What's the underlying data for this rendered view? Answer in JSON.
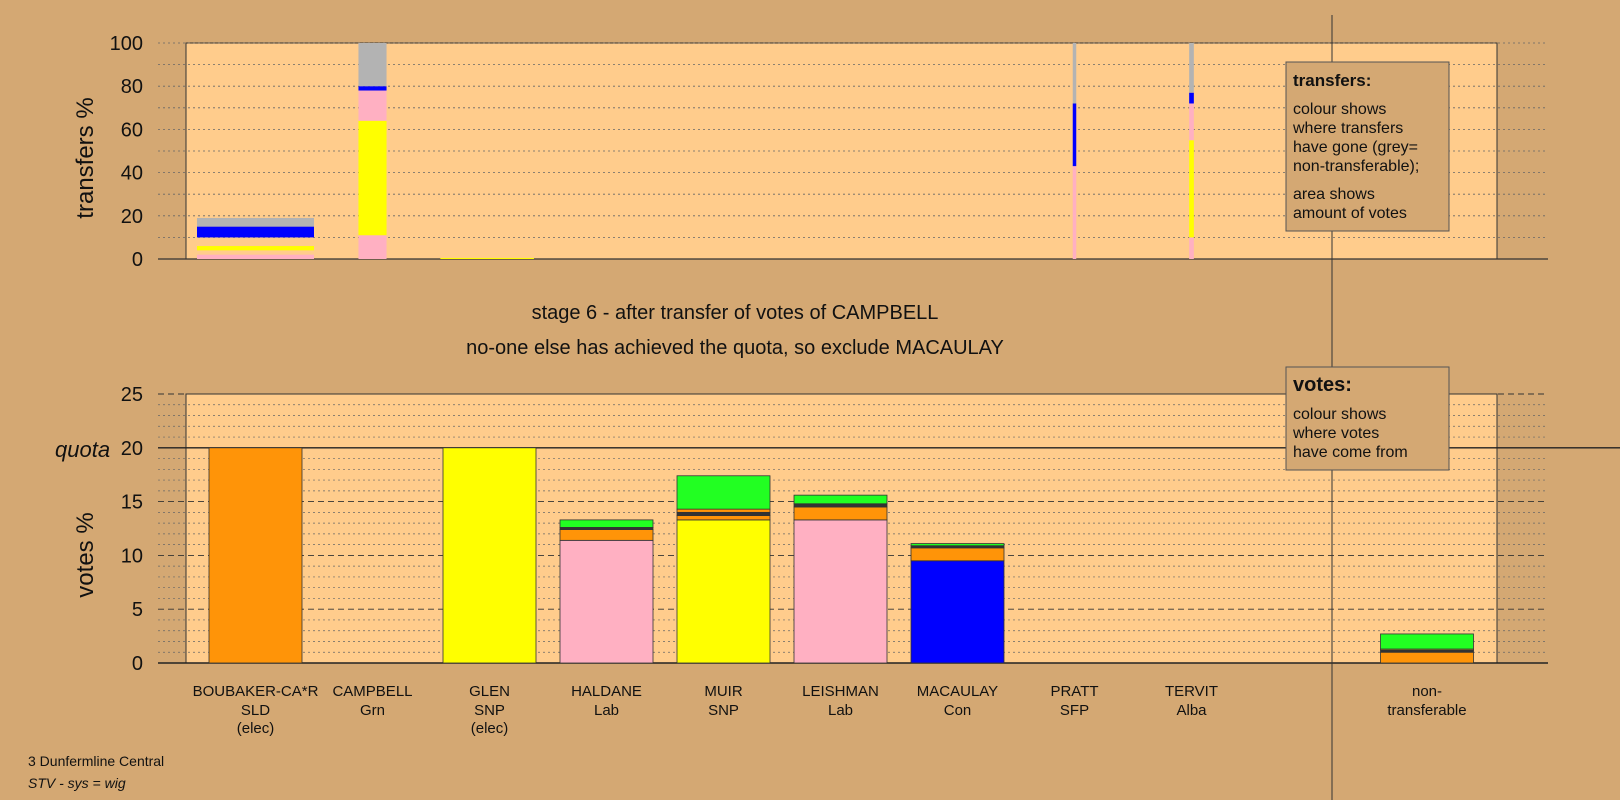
{
  "colors": {
    "page_bg": "#d4a873",
    "plot_bg": "#ffcc8c",
    "SLD": "#ff9408",
    "SNP": "#ffff00",
    "Lab": "#ffb0c2",
    "Con": "#0000ff",
    "Grn": "#22ff22",
    "Alba": "#2255cc",
    "nontransferable": "#b3b3b3",
    "dark": "#333333"
  },
  "texts": {
    "stage_line1": "stage 6 - after transfer of votes of CAMPBELL",
    "stage_line2": "no-one else has achieved the quota, so exclude MACAULAY",
    "transfers_ylabel": "transfers %",
    "votes_ylabel": "votes %",
    "quota_label": "quota",
    "footer_line1": "3 Dunfermline Central",
    "footer_line2": "STV - sys = wig",
    "transfers_box_title": "transfers:",
    "transfers_box_p1": [
      "colour shows",
      "where transfers",
      "have gone (grey=",
      "non-transferable);"
    ],
    "transfers_box_p2": [
      "area shows",
      "amount of votes"
    ],
    "votes_box_title": "votes:",
    "votes_box_p1": [
      "colour shows",
      "where votes",
      "have come from"
    ]
  },
  "chart_data": [
    {
      "type": "bar",
      "name": "transfers",
      "ylabel": "transfers %",
      "ylim": [
        0,
        100
      ],
      "yticks": [
        0,
        20,
        40,
        60,
        80,
        100
      ],
      "bars": [
        {
          "center": 0,
          "width_cat": 1.0,
          "segments": [
            {
              "party": "Lab",
              "from": 0,
              "to": 2
            },
            {
              "party": "SNP",
              "from": 4,
              "to": 6
            },
            {
              "party": "Con",
              "from": 10,
              "to": 15
            },
            {
              "party": "nontransferable",
              "from": 15,
              "to": 19
            }
          ]
        },
        {
          "center": 1,
          "width_cat": 0.24,
          "segments": [
            {
              "party": "Lab",
              "from": 0,
              "to": 11
            },
            {
              "party": "SNP",
              "from": 11,
              "to": 64
            },
            {
              "party": "Lab",
              "from": 64,
              "to": 78
            },
            {
              "party": "Con",
              "from": 78,
              "to": 80
            },
            {
              "party": "nontransferable",
              "from": 80,
              "to": 100
            }
          ]
        },
        {
          "center": 1.98,
          "width_cat": 0.8,
          "segments": [
            {
              "party": "SNP",
              "from": 0,
              "to": 0.5
            }
          ]
        },
        {
          "center": 7,
          "width_cat": 0.03,
          "segments": [
            {
              "party": "Lab",
              "from": 0,
              "to": 43
            },
            {
              "party": "Con",
              "from": 43,
              "to": 72
            },
            {
              "party": "nontransferable",
              "from": 72,
              "to": 100
            }
          ]
        },
        {
          "center": 8,
          "width_cat": 0.04,
          "segments": [
            {
              "party": "Lab",
              "from": 0,
              "to": 10
            },
            {
              "party": "SNP",
              "from": 10,
              "to": 55
            },
            {
              "party": "Lab",
              "from": 55,
              "to": 72
            },
            {
              "party": "Con",
              "from": 72,
              "to": 77
            },
            {
              "party": "nontransferable",
              "from": 77,
              "to": 100
            }
          ]
        }
      ]
    },
    {
      "type": "bar",
      "name": "votes",
      "ylabel": "votes %",
      "ylim": [
        0,
        25
      ],
      "yticks": [
        0,
        5,
        10,
        15,
        20,
        25
      ],
      "quota": 20,
      "categories": [
        {
          "name": "BOUBAKER-CA*R",
          "party": "SLD",
          "note": "(elec)"
        },
        {
          "name": "CAMPBELL",
          "party": "Grn",
          "note": ""
        },
        {
          "name": "GLEN",
          "party": "SNP",
          "note": "(elec)"
        },
        {
          "name": "HALDANE",
          "party": "Lab",
          "note": ""
        },
        {
          "name": "MUIR",
          "party": "SNP",
          "note": ""
        },
        {
          "name": "LEISHMAN",
          "party": "Lab",
          "note": ""
        },
        {
          "name": "MACAULAY",
          "party": "Con",
          "note": ""
        },
        {
          "name": "PRATT",
          "party": "SFP",
          "note": ""
        },
        {
          "name": "TERVIT",
          "party": "Alba",
          "note": ""
        }
      ],
      "nontransferable_label": [
        "non-",
        "transferable"
      ],
      "stacks": [
        [
          {
            "party": "SLD",
            "value": 20
          }
        ],
        [],
        [
          {
            "party": "SNP",
            "value": 20
          }
        ],
        [
          {
            "party": "Lab",
            "value": 11.4
          },
          {
            "party": "SLD",
            "value": 1.0
          },
          {
            "party": "dark",
            "value": 0.2
          },
          {
            "party": "Grn",
            "value": 0.7
          }
        ],
        [
          {
            "party": "SNP",
            "value": 13.3
          },
          {
            "party": "SLD",
            "value": 0.4
          },
          {
            "party": "dark",
            "value": 0.3
          },
          {
            "party": "SLD",
            "value": 0.3
          },
          {
            "party": "Grn",
            "value": 3.1
          }
        ],
        [
          {
            "party": "Lab",
            "value": 13.3
          },
          {
            "party": "SLD",
            "value": 1.2
          },
          {
            "party": "dark",
            "value": 0.3
          },
          {
            "party": "Grn",
            "value": 0.8
          }
        ],
        [
          {
            "party": "Con",
            "value": 9.5
          },
          {
            "party": "SLD",
            "value": 1.2
          },
          {
            "party": "dark",
            "value": 0.2
          },
          {
            "party": "Grn",
            "value": 0.2
          }
        ],
        [],
        []
      ],
      "nontransferable_stack": [
        {
          "party": "SLD",
          "value": 1.0
        },
        {
          "party": "dark",
          "value": 0.2
        },
        {
          "party": "SNP",
          "value": 0.1
        },
        {
          "party": "Grn",
          "value": 1.4
        }
      ]
    }
  ]
}
